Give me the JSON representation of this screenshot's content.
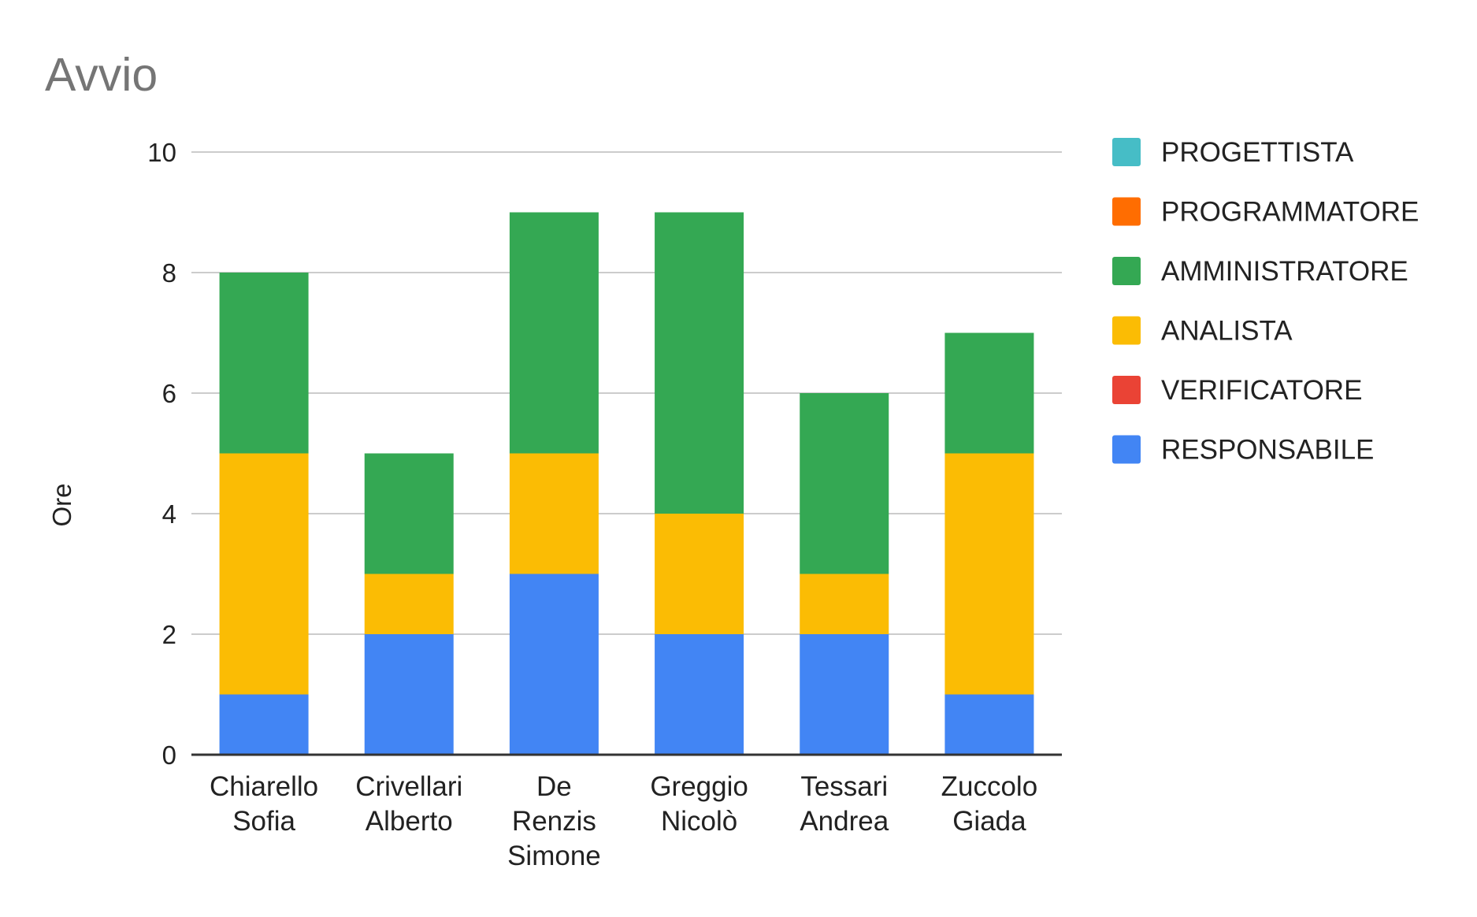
{
  "chart_data": {
    "type": "bar",
    "stacked": true,
    "title": "Avvio",
    "xlabel": "",
    "ylabel": "Ore",
    "ylim": [
      0,
      10
    ],
    "yticks": [
      0,
      2,
      4,
      6,
      8,
      10
    ],
    "grid": true,
    "legend_position": "right",
    "categories": [
      [
        "Chiarello",
        "Sofia"
      ],
      [
        "Crivellari",
        "Alberto"
      ],
      [
        "De",
        "Renzis",
        "Simone"
      ],
      [
        "Greggio",
        "Nicolò"
      ],
      [
        "Tessari",
        "Andrea"
      ],
      [
        "Zuccolo",
        "Giada"
      ]
    ],
    "series": [
      {
        "name": "RESPONSABILE",
        "color": "#4285f4",
        "values": [
          1,
          2,
          3,
          2,
          2,
          1
        ]
      },
      {
        "name": "VERIFICATORE",
        "color": "#ea4335",
        "values": [
          0,
          0,
          0,
          0,
          0,
          0
        ]
      },
      {
        "name": "ANALISTA",
        "color": "#fbbc04",
        "values": [
          4,
          1,
          2,
          2,
          1,
          4
        ]
      },
      {
        "name": "AMMINISTRATORE",
        "color": "#34a853",
        "values": [
          3,
          2,
          4,
          5,
          3,
          2
        ]
      },
      {
        "name": "PROGRAMMATORE",
        "color": "#ff6d01",
        "values": [
          0,
          0,
          0,
          0,
          0,
          0
        ]
      },
      {
        "name": "PROGETTISTA",
        "color": "#46bdc6",
        "values": [
          0,
          0,
          0,
          0,
          0,
          0
        ]
      }
    ],
    "legend_order": [
      "PROGETTISTA",
      "PROGRAMMATORE",
      "AMMINISTRATORE",
      "ANALISTA",
      "VERIFICATORE",
      "RESPONSABILE"
    ]
  }
}
